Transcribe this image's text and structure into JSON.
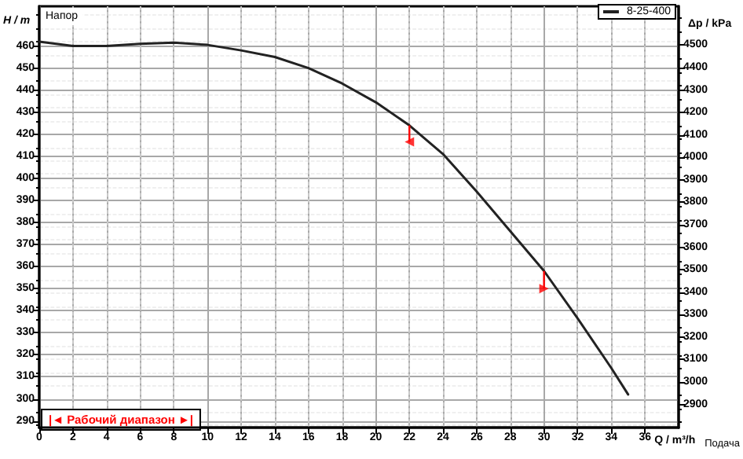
{
  "chart_data": {
    "type": "line",
    "xlabel": "Q / m³/h",
    "ylabel": "H / m",
    "y2label": "Δp / kPa",
    "x": [
      0,
      2,
      4,
      6,
      8,
      10,
      12,
      14,
      16,
      18,
      20,
      22,
      24,
      26,
      28,
      30,
      32,
      34,
      35
    ],
    "series": [
      {
        "name": "8-25-400",
        "color": "#222222",
        "values": [
          462,
          460,
          460,
          461,
          461.5,
          460.5,
          458,
          455,
          450,
          443,
          434.5,
          424,
          411,
          394,
          376,
          358,
          336.5,
          314,
          302
        ]
      },
      {
        "type": "scatter",
        "x": [
          22,
          30
        ],
        "color": "#ff0000",
        "marker": "triangle",
        "values": [
          416.5,
          350
        ],
        "errors": [
          [
            416.5,
            424
          ],
          [
            350,
            358
          ]
        ]
      }
    ],
    "xlim": [
      0,
      38
    ],
    "xticks": [
      0,
      2,
      4,
      6,
      8,
      10,
      12,
      14,
      16,
      18,
      20,
      22,
      24,
      26,
      28,
      30,
      32,
      34,
      36
    ],
    "ylim": [
      287,
      478
    ],
    "yticks": [
      290,
      300,
      310,
      320,
      330,
      340,
      350,
      360,
      370,
      380,
      390,
      400,
      410,
      420,
      430,
      440,
      450,
      460
    ],
    "y2lim": [
      2797,
      4673
    ],
    "y2ticks": [
      2900,
      3000,
      3100,
      3200,
      3300,
      3400,
      3500,
      3600,
      3700,
      3800,
      3900,
      4000,
      4100,
      4200,
      4300,
      4400,
      4500
    ],
    "annotations": [
      "Напор",
      "|◄ Рабочий диапазон ►|",
      "Подача"
    ],
    "grid": true,
    "legend": "top right",
    "marker": "none",
    "line_style": "solid"
  }
}
